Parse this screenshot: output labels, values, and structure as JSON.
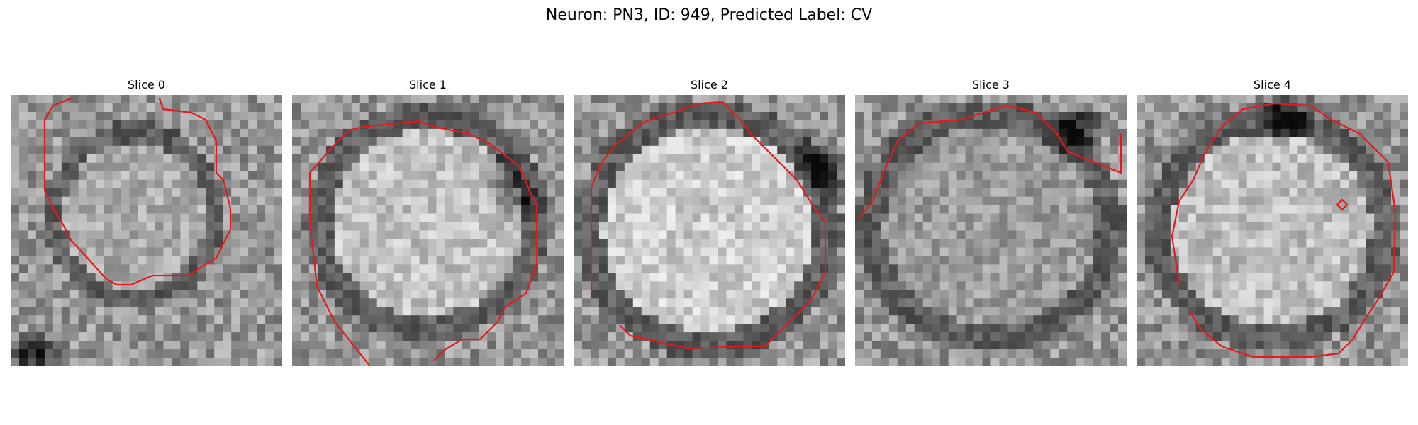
{
  "figure": {
    "title": "Neuron: PN3, ID: 949, Predicted Label: CV"
  },
  "colors": {
    "contour": "#e41a1c",
    "background": "#ffffff"
  },
  "grid_size": 32,
  "panels": [
    {
      "title": "Slice 0"
    },
    {
      "title": "Slice 1"
    },
    {
      "title": "Slice 2"
    },
    {
      "title": "Slice 3"
    },
    {
      "title": "Slice 4"
    }
  ]
}
